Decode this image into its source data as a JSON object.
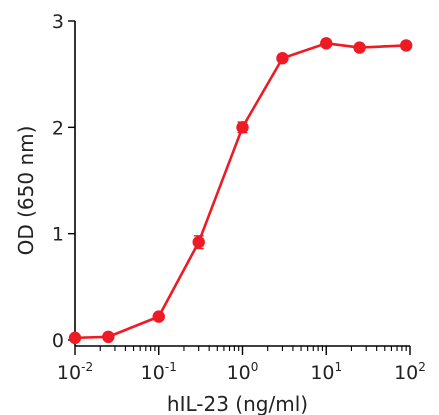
{
  "chart_data": {
    "type": "line",
    "x_scale": "log",
    "xlabel": "hIL-23 (ng/ml)",
    "ylabel": "OD (650 nm)",
    "xlim": [
      0.01,
      100
    ],
    "ylim": [
      0,
      3
    ],
    "x_ticks": [
      {
        "base": "10",
        "exp": "-2",
        "value": 0.01
      },
      {
        "base": "10",
        "exp": "-1",
        "value": 0.1
      },
      {
        "base": "10",
        "exp": "0",
        "value": 1
      },
      {
        "base": "10",
        "exp": "1",
        "value": 10
      },
      {
        "base": "10",
        "exp": "2",
        "value": 100
      }
    ],
    "y_ticks": [
      {
        "label": "0",
        "value": 0
      },
      {
        "label": "1",
        "value": 1
      },
      {
        "label": "2",
        "value": 2
      },
      {
        "label": "3",
        "value": 3
      }
    ],
    "grid": false,
    "color": "#ee1b24",
    "series": [
      {
        "x": [
          0.01,
          0.025,
          0.1,
          0.3,
          1,
          3,
          10,
          25,
          90
        ],
        "y": [
          0.02,
          0.03,
          0.22,
          0.92,
          2.0,
          2.65,
          2.79,
          2.75,
          2.77
        ],
        "err": [
          0.02,
          0.02,
          0.02,
          0.06,
          0.05,
          0.03,
          0.03,
          0.03,
          0.03
        ]
      }
    ]
  }
}
